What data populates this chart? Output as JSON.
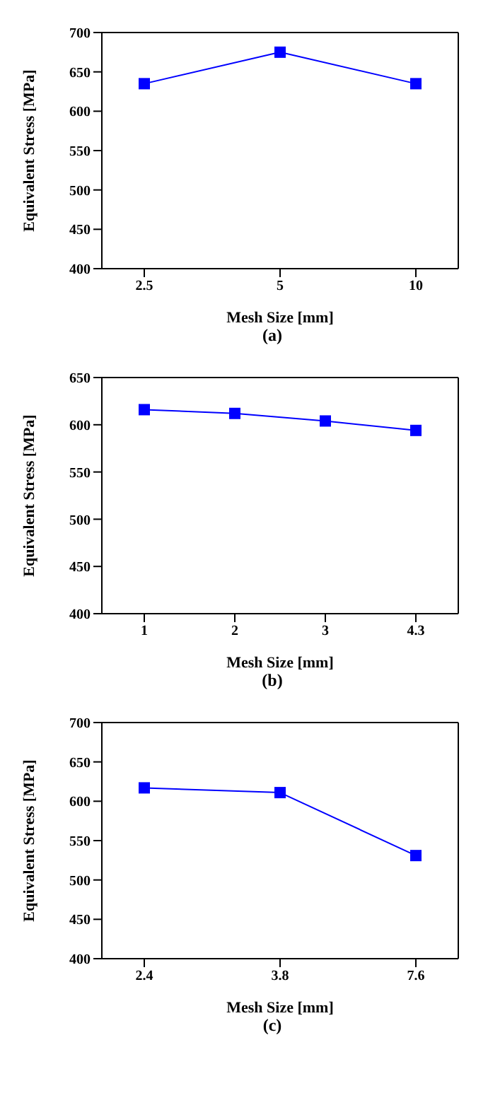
{
  "chart_data": [
    {
      "type": "line",
      "categories": [
        "2.5",
        "5",
        "10"
      ],
      "xlabel": "Mesh Size [mm]",
      "ylabel": "Equivalent Stress [MPa]",
      "annotations": [
        "(a)"
      ],
      "series": [
        {
          "color": "#0000ff",
          "values": [
            635,
            675,
            635
          ]
        }
      ],
      "ylim": [
        400,
        700
      ],
      "yticks": [
        400,
        450,
        500,
        550,
        600,
        650,
        700
      ],
      "grid": false,
      "legend": false,
      "marker": "square",
      "line_style": "solid"
    },
    {
      "type": "line",
      "categories": [
        "1",
        "2",
        "3",
        "4.3"
      ],
      "xlabel": "Mesh Size [mm]",
      "ylabel": "Equivalent Stress [MPa]",
      "annotations": [
        "(b)"
      ],
      "series": [
        {
          "color": "#0000ff",
          "values": [
            616,
            612,
            604,
            594
          ]
        }
      ],
      "ylim": [
        400,
        650
      ],
      "yticks": [
        400,
        450,
        500,
        550,
        600,
        650
      ],
      "grid": false,
      "legend": false,
      "marker": "square",
      "line_style": "solid"
    },
    {
      "type": "line",
      "categories": [
        "2.4",
        "3.8",
        "7.6"
      ],
      "xlabel": "Mesh Size [mm]",
      "ylabel": "Equivalent Stress [MPa]",
      "annotations": [
        "(c)"
      ],
      "series": [
        {
          "color": "#0000ff",
          "values": [
            617,
            611,
            531
          ]
        }
      ],
      "ylim": [
        400,
        700
      ],
      "yticks": [
        400,
        450,
        500,
        550,
        600,
        650,
        700
      ],
      "grid": false,
      "legend": false,
      "marker": "square",
      "line_style": "solid"
    }
  ]
}
